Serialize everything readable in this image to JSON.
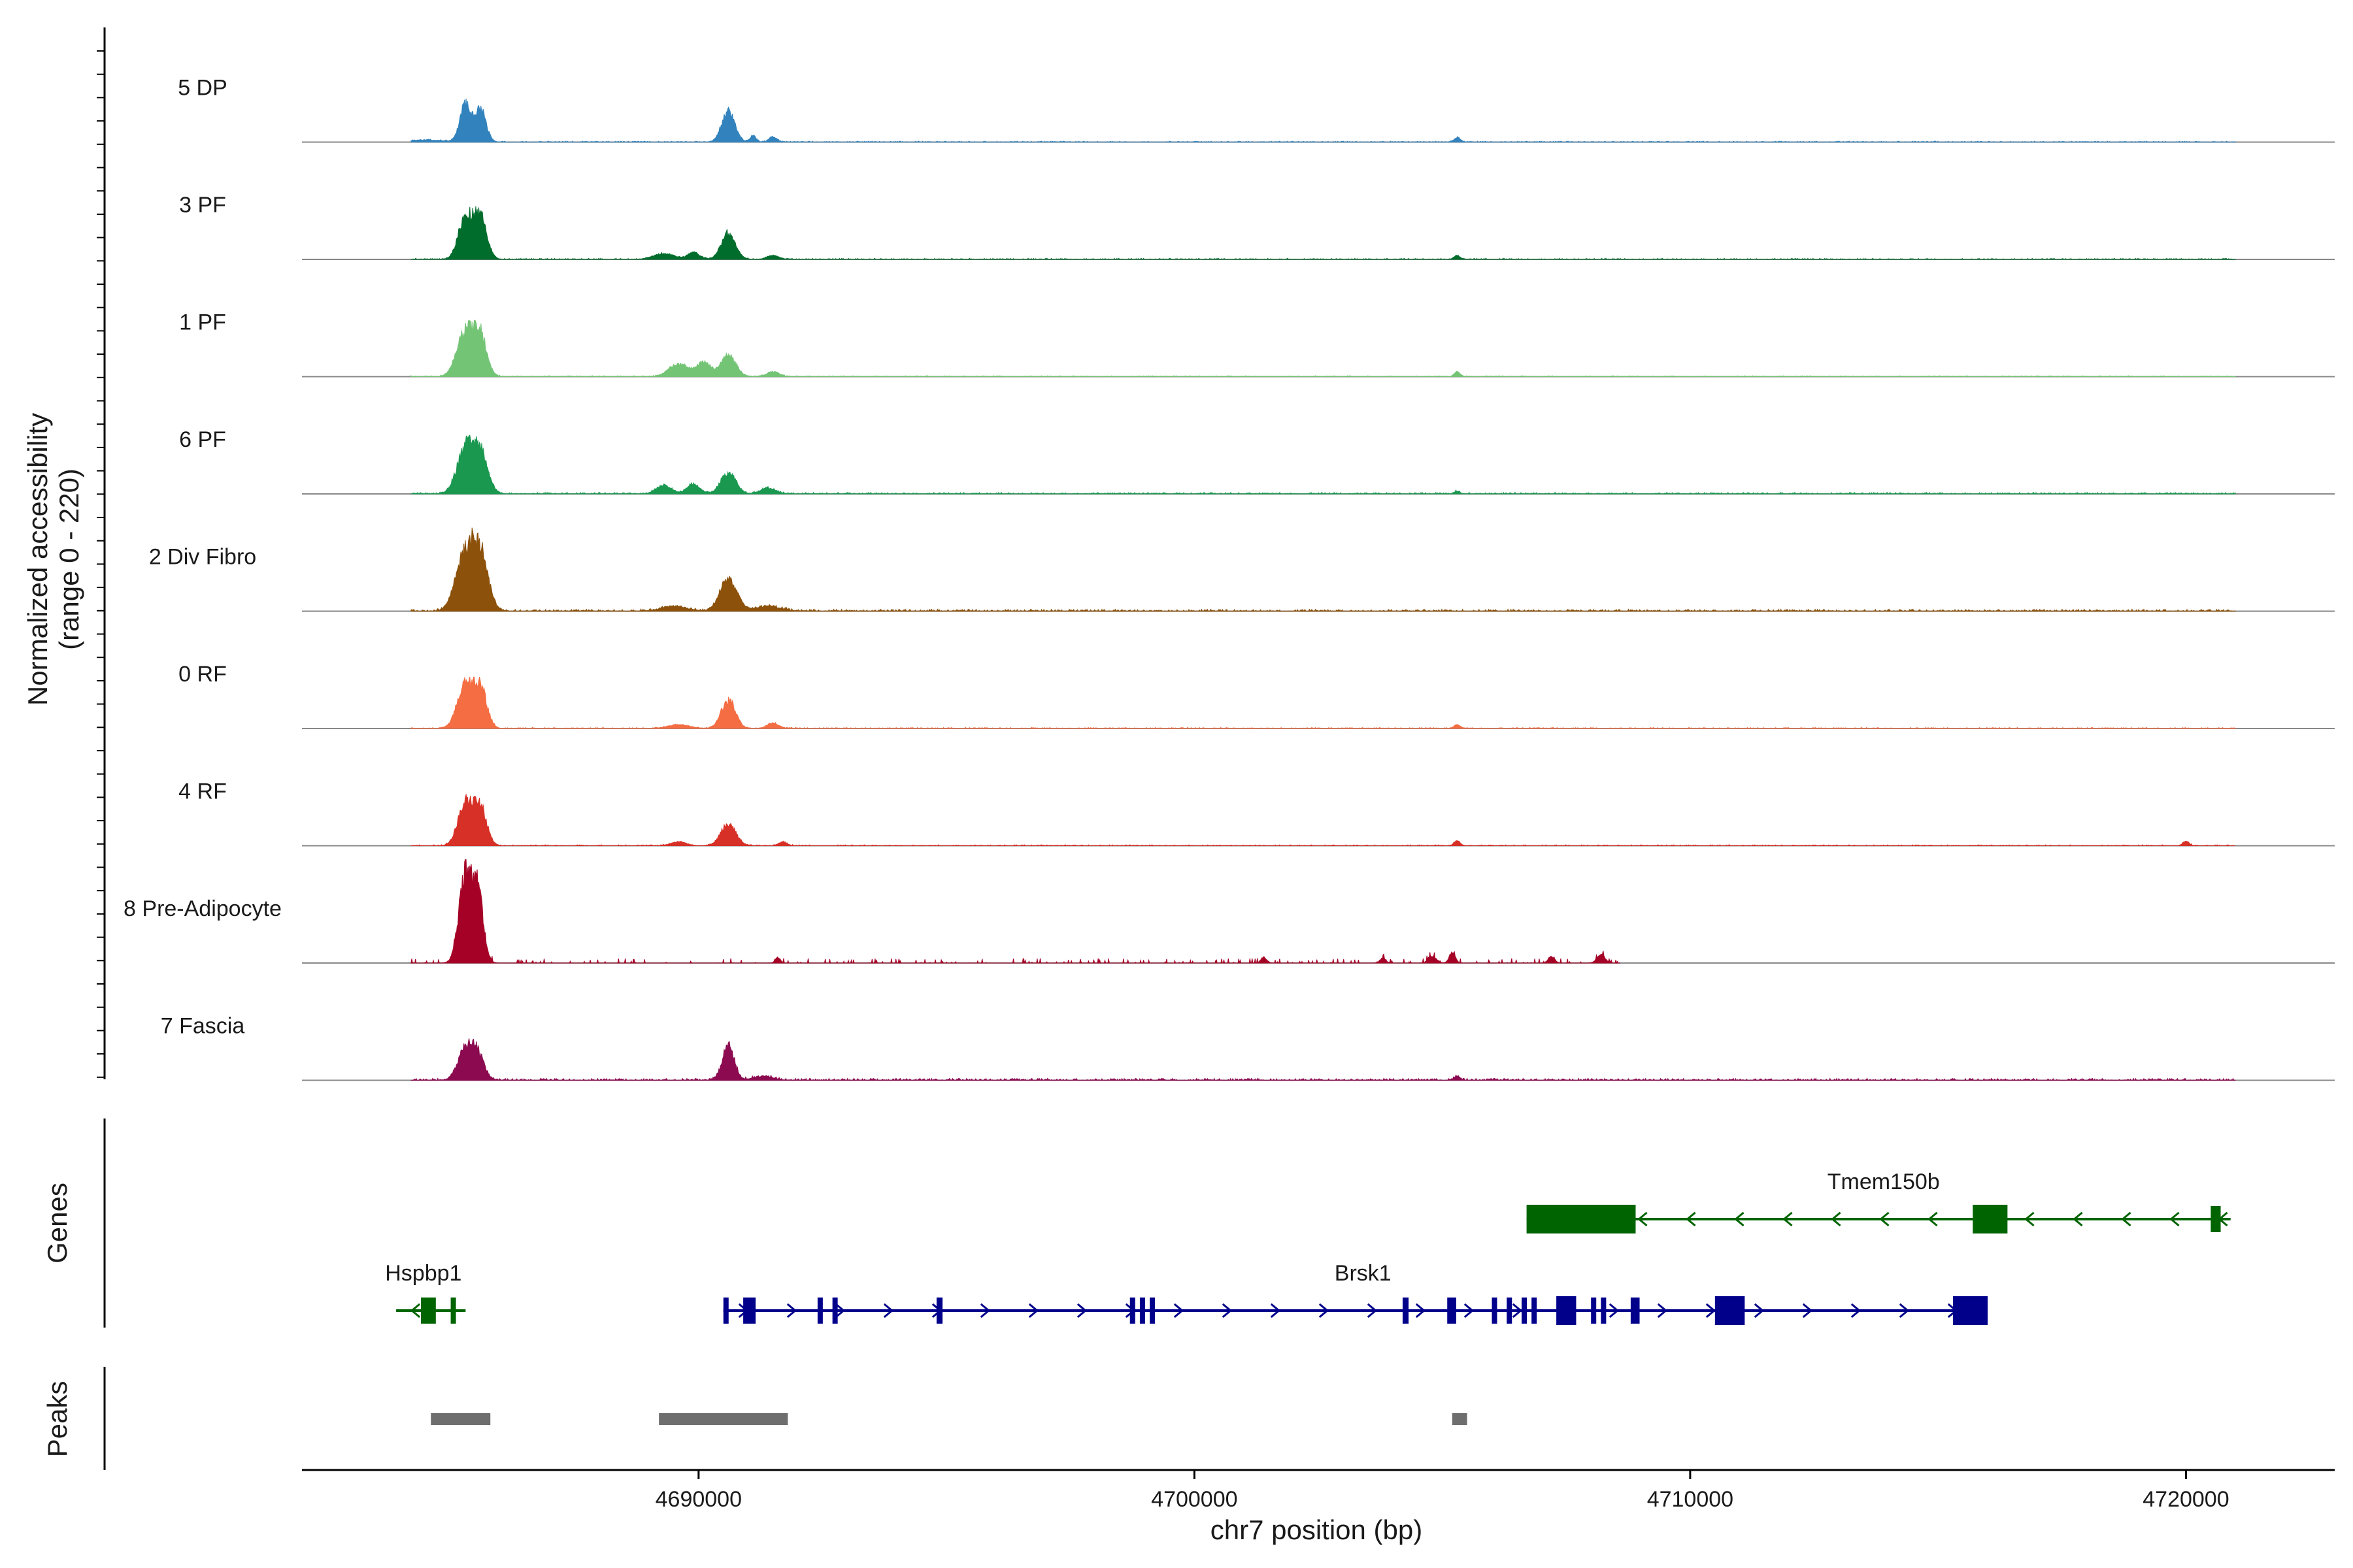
{
  "chart_data": {
    "type": "area",
    "description_of_type": "coverage tracks with gene and peak annotations",
    "chromosome": "chr7",
    "xlabel": "chr7 position (bp)",
    "xlim": [
      4682000,
      4723000
    ],
    "x_ticks": [
      4690000,
      4700000,
      4710000,
      4720000
    ],
    "x_tick_labels": [
      "4690000",
      "4700000",
      "4710000",
      "4720000"
    ],
    "coverage_ylabel_line1": "Normalized accessibility",
    "coverage_ylabel_line2": "(range 0 - 220)",
    "ylim": [
      0,
      220
    ],
    "genes_label": "Genes",
    "peaks_label": "Peaks",
    "tracks": [
      {
        "name": "5 DP",
        "color": "#3182bd",
        "peaks": [
          [
            4684500,
            4,
            400
          ],
          [
            4685300,
            78,
            110
          ],
          [
            4685600,
            70,
            110
          ],
          [
            4690600,
            65,
            130
          ],
          [
            4691100,
            14,
            60
          ],
          [
            4691500,
            10,
            80
          ],
          [
            4705300,
            10,
            60
          ]
        ],
        "noise": 2
      },
      {
        "name": "3 PF",
        "color": "#006d2c",
        "peaks": [
          [
            4685300,
            90,
            140
          ],
          [
            4685600,
            85,
            130
          ],
          [
            4689300,
            12,
            200
          ],
          [
            4689900,
            14,
            120
          ],
          [
            4690600,
            55,
            140
          ],
          [
            4691500,
            8,
            120
          ],
          [
            4705300,
            8,
            60
          ]
        ],
        "noise": 2
      },
      {
        "name": "1 PF",
        "color": "#74c476",
        "peaks": [
          [
            4685300,
            95,
            170
          ],
          [
            4685600,
            80,
            130
          ],
          [
            4689600,
            25,
            200
          ],
          [
            4690100,
            30,
            140
          ],
          [
            4690600,
            45,
            150
          ],
          [
            4691500,
            10,
            120
          ],
          [
            4705300,
            10,
            60
          ]
        ],
        "noise": 2
      },
      {
        "name": "6 PF",
        "color": "#1a9850",
        "peaks": [
          [
            4685300,
            95,
            170
          ],
          [
            4685600,
            80,
            150
          ],
          [
            4689300,
            18,
            150
          ],
          [
            4689900,
            20,
            130
          ],
          [
            4690600,
            45,
            150
          ],
          [
            4691400,
            12,
            150
          ],
          [
            4705300,
            5,
            60
          ]
        ],
        "noise": 3
      },
      {
        "name": "2 Div Fibro",
        "color": "#8c510a",
        "peaks": [
          [
            4685300,
            118,
            190
          ],
          [
            4685600,
            105,
            160
          ],
          [
            4689500,
            10,
            250
          ],
          [
            4690600,
            65,
            170
          ],
          [
            4691400,
            10,
            250
          ]
        ],
        "noise": 4
      },
      {
        "name": "0 RF",
        "color": "#f46d43",
        "peaks": [
          [
            4685300,
            95,
            160
          ],
          [
            4685600,
            80,
            130
          ],
          [
            4689600,
            8,
            200
          ],
          [
            4690600,
            60,
            140
          ],
          [
            4691500,
            10,
            120
          ],
          [
            4705300,
            8,
            60
          ]
        ],
        "noise": 2
      },
      {
        "name": "4 RF",
        "color": "#d73027",
        "peaks": [
          [
            4685300,
            90,
            150
          ],
          [
            4685600,
            75,
            130
          ],
          [
            4689600,
            8,
            150
          ],
          [
            4690600,
            45,
            150
          ],
          [
            4691700,
            8,
            80
          ],
          [
            4705300,
            10,
            60
          ],
          [
            4720000,
            10,
            60
          ]
        ],
        "noise": 2
      },
      {
        "name": "8 Pre-Adipocyte",
        "color": "#a50026",
        "peaks": [
          [
            4685300,
            185,
            130
          ],
          [
            4685550,
            140,
            110
          ],
          [
            4691600,
            12,
            50
          ],
          [
            4701400,
            12,
            60
          ],
          [
            4703800,
            10,
            60
          ],
          [
            4704800,
            15,
            80
          ],
          [
            4705200,
            22,
            60
          ],
          [
            4707200,
            15,
            60
          ],
          [
            4708200,
            18,
            80
          ]
        ],
        "noise": 7,
        "noise_end": 4708600,
        "sparse": true
      },
      {
        "name": "7 Fascia",
        "color": "#8b0a50",
        "peaks": [
          [
            4685300,
            65,
            150
          ],
          [
            4685550,
            50,
            130
          ],
          [
            4690600,
            70,
            120
          ],
          [
            4691300,
            8,
            200
          ],
          [
            4705300,
            8,
            60
          ]
        ],
        "noise": 4
      }
    ],
    "genes": [
      {
        "name": "Tmem150b",
        "color": "#006400",
        "strand": "-",
        "row": 0,
        "start": 4706700,
        "end": 4720900,
        "exons": [
          [
            4706700,
            4708900
          ],
          [
            4715700,
            4716400
          ],
          [
            4720500,
            4720700
          ]
        ]
      },
      {
        "name": "Hspbp1",
        "color": "#006400",
        "strand": "-",
        "row": 1,
        "start": 4683900,
        "end": 4685300,
        "exons": [
          [
            4684400,
            4684700
          ],
          [
            4685000,
            4685080
          ]
        ]
      },
      {
        "name": "Brsk1",
        "color": "#00008b",
        "strand": "+",
        "row": 1,
        "start": 4690500,
        "end": 4716000,
        "exons": [
          [
            4690500,
            4690560
          ],
          [
            4690900,
            4691150
          ],
          [
            4692400,
            4692480
          ],
          [
            4692700,
            4692780
          ],
          [
            4694800,
            4694920
          ],
          [
            4698700,
            4698780
          ],
          [
            4698900,
            4698980
          ],
          [
            4699100,
            4699180
          ],
          [
            4704200,
            4704320
          ],
          [
            4705100,
            4705280
          ],
          [
            4706000,
            4706100
          ],
          [
            4706300,
            4706400
          ],
          [
            4706600,
            4706700
          ],
          [
            4706800,
            4706900
          ],
          [
            4707300,
            4707700
          ],
          [
            4708000,
            4708080
          ],
          [
            4708200,
            4708280
          ],
          [
            4708800,
            4708980
          ],
          [
            4710500,
            4711100
          ],
          [
            4715300,
            4716000
          ]
        ]
      }
    ],
    "peak_regions": [
      [
        4684600,
        4685800
      ],
      [
        4689200,
        4691800
      ],
      [
        4705200,
        4705500
      ]
    ]
  }
}
